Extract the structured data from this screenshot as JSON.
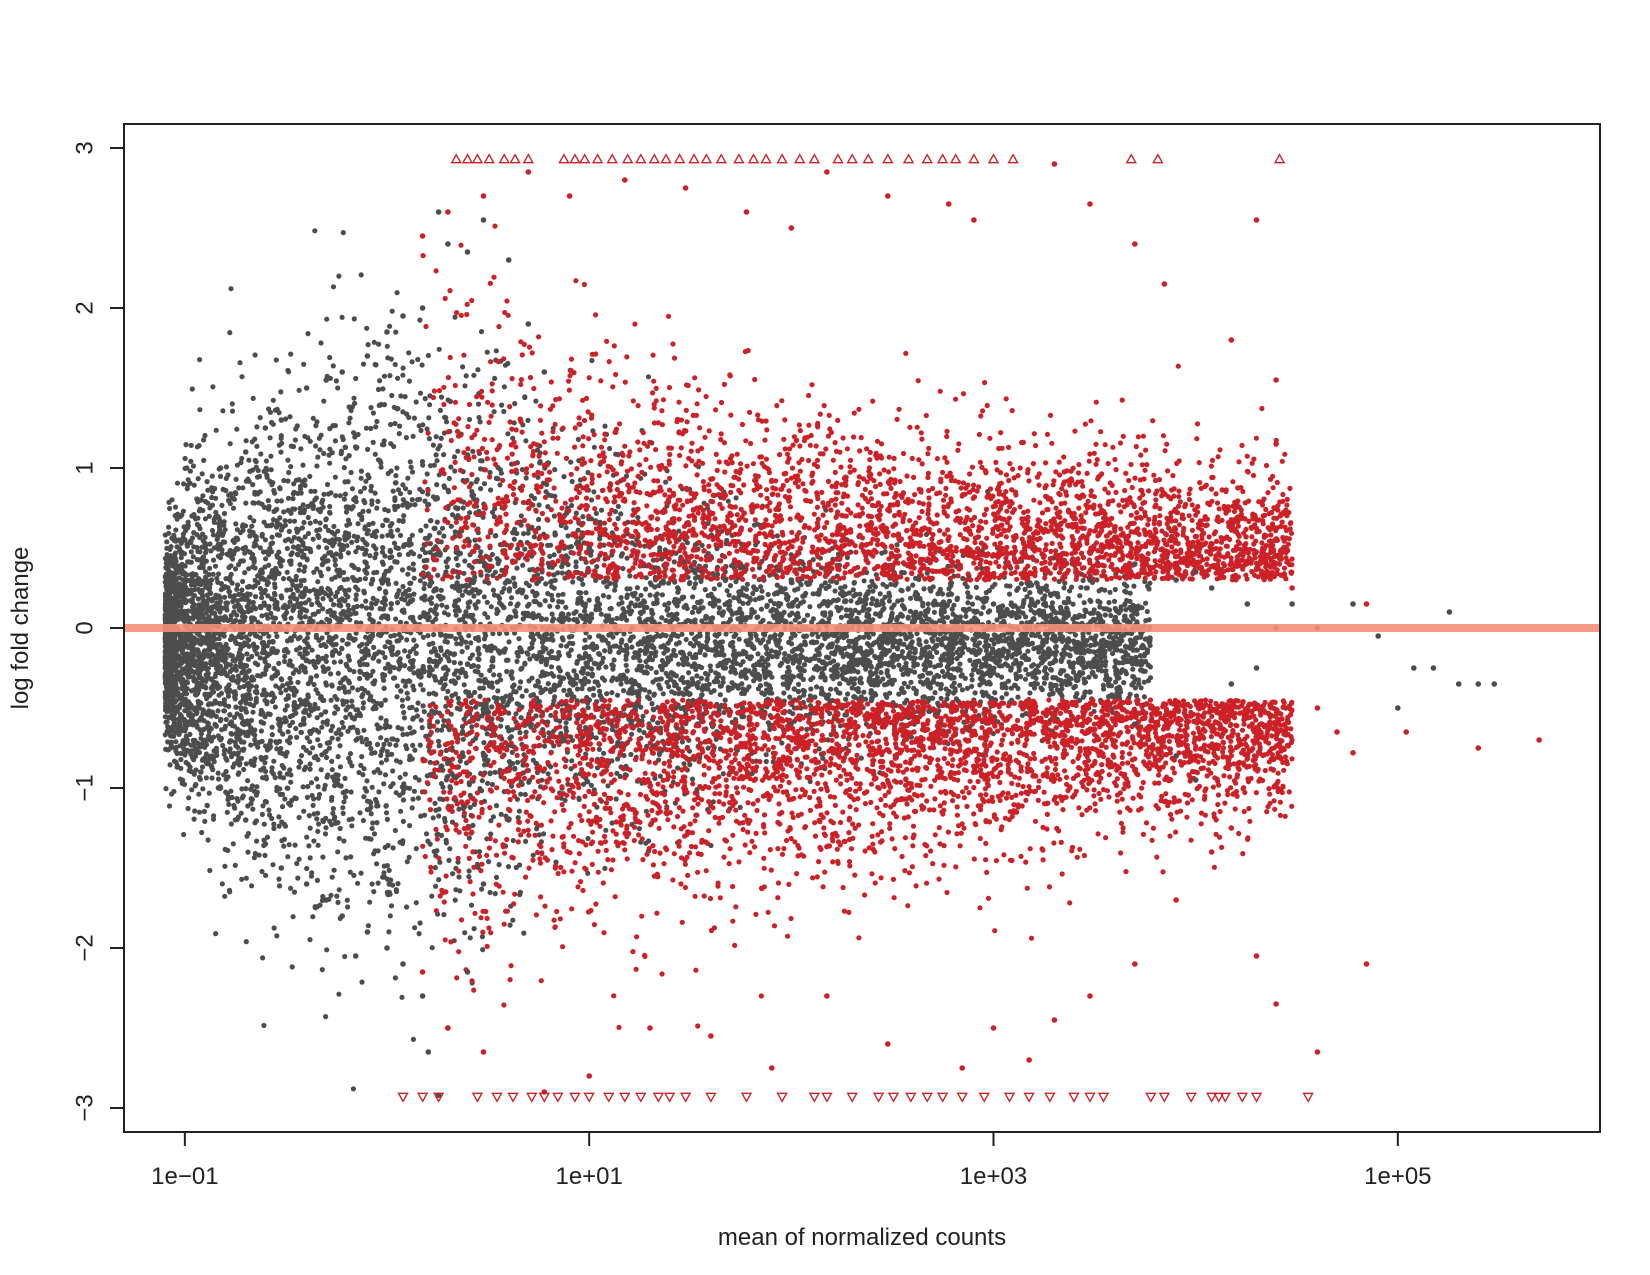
{
  "chart_data": {
    "type": "scatter",
    "xlabel": "mean of normalized counts",
    "ylabel": "log fold change",
    "x_scale": "log10",
    "xlim": [
      0.05,
      1000000
    ],
    "ylim": [
      -3.15,
      3.15
    ],
    "x_ticks": [
      {
        "value": 0.1,
        "label": "1e−01"
      },
      {
        "value": 10,
        "label": "1e+01"
      },
      {
        "value": 1000,
        "label": "1e+03"
      },
      {
        "value": 100000,
        "label": "1e+05"
      }
    ],
    "y_ticks": [
      {
        "value": -3,
        "label": "−3"
      },
      {
        "value": -2,
        "label": "−2"
      },
      {
        "value": -1,
        "label": "−1"
      },
      {
        "value": 0,
        "label": "0"
      },
      {
        "value": 1,
        "label": "1"
      },
      {
        "value": 2,
        "label": "2"
      },
      {
        "value": 3,
        "label": "3"
      }
    ],
    "reference_line": {
      "y": 0,
      "color": "#f4907a"
    },
    "colors": {
      "not_significant": "#4d4d4d",
      "significant": "#cc2127"
    },
    "grid": false,
    "legend": "none",
    "series": [
      {
        "group": "not_significant",
        "color": "#4d4d4d",
        "marker": "circle",
        "points": [
          [
            0.1,
            0.55
          ],
          [
            0.1,
            -0.7
          ],
          [
            0.12,
            0.8
          ],
          [
            0.12,
            -0.9
          ],
          [
            0.15,
            1.0
          ],
          [
            0.15,
            -1.0
          ],
          [
            0.2,
            1.1
          ],
          [
            0.2,
            -1.2
          ],
          [
            0.25,
            1.25
          ],
          [
            0.25,
            -1.35
          ],
          [
            0.3,
            1.3
          ],
          [
            0.3,
            -1.5
          ],
          [
            0.4,
            1.5
          ],
          [
            0.4,
            -1.6
          ],
          [
            0.5,
            1.55
          ],
          [
            0.5,
            -1.7
          ],
          [
            0.6,
            1.6
          ],
          [
            0.6,
            -1.8
          ],
          [
            0.8,
            1.7
          ],
          [
            0.8,
            -1.9
          ],
          [
            1.0,
            1.85
          ],
          [
            1.0,
            -2.0
          ],
          [
            1.2,
            1.95
          ],
          [
            1.2,
            -2.1
          ],
          [
            1.5,
            2.0
          ],
          [
            1.5,
            -2.3
          ],
          [
            0.7,
            -2.05
          ],
          [
            1.6,
            -2.65
          ],
          [
            1.8,
            -2.92
          ],
          [
            1.8,
            2.6
          ],
          [
            2.0,
            2.4
          ],
          [
            2.0,
            -2.5
          ],
          [
            2.5,
            2.35
          ],
          [
            2.5,
            -2.15
          ],
          [
            3.0,
            2.55
          ],
          [
            3.0,
            -1.6
          ],
          [
            4.0,
            2.3
          ],
          [
            4.0,
            -1.2
          ],
          [
            5.0,
            1.9
          ],
          [
            6.0,
            1.6
          ],
          [
            10.0,
            0.5
          ],
          [
            10.0,
            -0.45
          ],
          [
            100.0,
            0.3
          ],
          [
            100.0,
            -0.3
          ],
          [
            1000.0,
            0.15
          ],
          [
            1000.0,
            -0.15
          ],
          [
            3000.0,
            0.3
          ],
          [
            3000.0,
            -0.4
          ],
          [
            5000.0,
            0.4
          ],
          [
            5000.0,
            -0.6
          ],
          [
            8000.0,
            0.3
          ],
          [
            8000.0,
            -0.8
          ],
          [
            10000.0,
            0.35
          ],
          [
            10000.0,
            -0.95
          ],
          [
            12000.0,
            0.25
          ],
          [
            15000.0,
            -0.35
          ],
          [
            18000.0,
            0.15
          ],
          [
            20000.0,
            -0.25
          ],
          [
            25000.0,
            0.0
          ],
          [
            30000.0,
            0.15
          ],
          [
            40000.0,
            0.0
          ],
          [
            60000.0,
            0.15
          ],
          [
            80000.0,
            -0.05
          ],
          [
            100000.0,
            -0.5
          ],
          [
            120000.0,
            -0.25
          ],
          [
            150000.0,
            -0.25
          ],
          [
            180000.0,
            0.1
          ],
          [
            200000.0,
            -0.35
          ],
          [
            250000.0,
            -0.35
          ],
          [
            300000.0,
            -0.35
          ]
        ]
      },
      {
        "group": "significant",
        "color": "#cc2127",
        "marker": "circle",
        "points": [
          [
            1.5,
            2.45
          ],
          [
            2.0,
            2.6
          ],
          [
            3.0,
            2.7
          ],
          [
            5.0,
            2.85
          ],
          [
            8.0,
            2.7
          ],
          [
            15.0,
            2.8
          ],
          [
            30.0,
            2.75
          ],
          [
            60.0,
            2.6
          ],
          [
            100.0,
            2.5
          ],
          [
            150.0,
            2.85
          ],
          [
            300.0,
            2.7
          ],
          [
            600.0,
            2.65
          ],
          [
            800.0,
            2.55
          ],
          [
            2000.0,
            2.9
          ],
          [
            3000.0,
            2.65
          ],
          [
            5000.0,
            2.4
          ],
          [
            7000.0,
            2.15
          ],
          [
            15000.0,
            1.8
          ],
          [
            20000.0,
            2.55
          ],
          [
            25000.0,
            1.55
          ],
          [
            25000.0,
            1.15
          ],
          [
            30000.0,
            0.25
          ],
          [
            40000.0,
            -0.5
          ],
          [
            50000.0,
            -0.65
          ],
          [
            60000.0,
            -0.78
          ],
          [
            70000.0,
            0.15
          ],
          [
            110000.0,
            -0.65
          ],
          [
            70000.0,
            -2.1
          ],
          [
            250000.0,
            -0.75
          ],
          [
            500000.0,
            -0.7
          ],
          [
            40000.0,
            -2.65
          ],
          [
            25000.0,
            -2.35
          ],
          [
            20000.0,
            -2.05
          ],
          [
            15000.0,
            -1.25
          ],
          [
            10000.0,
            -0.8
          ],
          [
            12000.0,
            -1.4
          ],
          [
            8000.0,
            -1.7
          ],
          [
            5000.0,
            -2.1
          ],
          [
            3000.0,
            -2.3
          ],
          [
            2000.0,
            -2.45
          ],
          [
            1500.0,
            -2.7
          ],
          [
            1000.0,
            -2.5
          ],
          [
            700.0,
            -2.75
          ],
          [
            300.0,
            -2.6
          ],
          [
            150.0,
            -2.3
          ],
          [
            80.0,
            -2.75
          ],
          [
            40.0,
            -2.55
          ],
          [
            20.0,
            -2.5
          ],
          [
            10.0,
            -2.8
          ],
          [
            6.0,
            -2.9
          ],
          [
            3.0,
            -2.65
          ],
          [
            2.0,
            -2.5
          ],
          [
            1.5,
            -2.15
          ]
        ]
      },
      {
        "group": "significant_clipped_up",
        "color": "#cc2127",
        "marker": "triangle-up",
        "points": [
          [
            2.2,
            2.93
          ],
          [
            2.5,
            2.93
          ],
          [
            2.8,
            2.93
          ],
          [
            3.2,
            2.93
          ],
          [
            3.8,
            2.93
          ],
          [
            4.3,
            2.93
          ],
          [
            5.0,
            2.93
          ],
          [
            7.5,
            2.93
          ],
          [
            8.5,
            2.93
          ],
          [
            9.5,
            2.93
          ],
          [
            11.0,
            2.93
          ],
          [
            13.0,
            2.93
          ],
          [
            15.5,
            2.93
          ],
          [
            18.0,
            2.93
          ],
          [
            21.0,
            2.93
          ],
          [
            24.0,
            2.93
          ],
          [
            28.0,
            2.93
          ],
          [
            33.0,
            2.93
          ],
          [
            38.0,
            2.93
          ],
          [
            45.0,
            2.93
          ],
          [
            55.0,
            2.93
          ],
          [
            65.0,
            2.93
          ],
          [
            75.0,
            2.93
          ],
          [
            90.0,
            2.93
          ],
          [
            110.0,
            2.93
          ],
          [
            130.0,
            2.93
          ],
          [
            170.0,
            2.93
          ],
          [
            200.0,
            2.93
          ],
          [
            240.0,
            2.93
          ],
          [
            300.0,
            2.93
          ],
          [
            380.0,
            2.93
          ],
          [
            470.0,
            2.93
          ],
          [
            560.0,
            2.93
          ],
          [
            650.0,
            2.93
          ],
          [
            800.0,
            2.93
          ],
          [
            1000.0,
            2.93
          ],
          [
            1250.0,
            2.93
          ],
          [
            4800.0,
            2.93
          ],
          [
            6500.0,
            2.93
          ],
          [
            26000.0,
            2.93
          ]
        ]
      },
      {
        "group": "significant_clipped_down",
        "color": "#cc2127",
        "marker": "triangle-down",
        "points": [
          [
            1.2,
            -2.93
          ],
          [
            1.5,
            -2.93
          ],
          [
            1.8,
            -2.93
          ],
          [
            2.8,
            -2.93
          ],
          [
            3.5,
            -2.93
          ],
          [
            4.2,
            -2.93
          ],
          [
            5.2,
            -2.93
          ],
          [
            6.0,
            -2.93
          ],
          [
            7.0,
            -2.93
          ],
          [
            8.5,
            -2.93
          ],
          [
            10.0,
            -2.93
          ],
          [
            12.5,
            -2.93
          ],
          [
            15.0,
            -2.93
          ],
          [
            18.0,
            -2.93
          ],
          [
            22.0,
            -2.93
          ],
          [
            25.0,
            -2.93
          ],
          [
            30.0,
            -2.93
          ],
          [
            40.0,
            -2.93
          ],
          [
            60.0,
            -2.93
          ],
          [
            90.0,
            -2.93
          ],
          [
            130.0,
            -2.93
          ],
          [
            150.0,
            -2.93
          ],
          [
            200.0,
            -2.93
          ],
          [
            270.0,
            -2.93
          ],
          [
            320.0,
            -2.93
          ],
          [
            390.0,
            -2.93
          ],
          [
            470.0,
            -2.93
          ],
          [
            560.0,
            -2.93
          ],
          [
            700.0,
            -2.93
          ],
          [
            900.0,
            -2.93
          ],
          [
            1200.0,
            -2.93
          ],
          [
            1500.0,
            -2.93
          ],
          [
            1900.0,
            -2.93
          ],
          [
            2500.0,
            -2.93
          ],
          [
            3000.0,
            -2.93
          ],
          [
            3500.0,
            -2.93
          ],
          [
            6000.0,
            -2.93
          ],
          [
            7000.0,
            -2.93
          ],
          [
            9500.0,
            -2.93
          ],
          [
            12000.0,
            -2.93
          ],
          [
            13000.0,
            -2.93
          ],
          [
            14000.0,
            -2.93
          ],
          [
            17000.0,
            -2.93
          ],
          [
            20000.0,
            -2.93
          ],
          [
            36000.0,
            -2.93
          ]
        ]
      }
    ],
    "density_regions": [
      {
        "group": "not_significant",
        "color": "#4d4d4d",
        "description_free": true,
        "x_range": [
          0.08,
          6000
        ],
        "center_y": -0.1,
        "spread_profile": [
          [
            0.08,
            0.25
          ],
          [
            0.1,
            0.5
          ],
          [
            0.3,
            0.75
          ],
          [
            1.0,
            0.85
          ],
          [
            3.0,
            0.75
          ],
          [
            10.0,
            0.5
          ],
          [
            100.0,
            0.3
          ],
          [
            1000.0,
            0.22
          ],
          [
            6000.0,
            0.18
          ]
        ],
        "count": 9000
      },
      {
        "group": "significant",
        "color": "#cc2127",
        "x_range": [
          1.5,
          30000
        ],
        "center_y": 0.5,
        "spread_profile": [
          [
            1.5,
            0.9
          ],
          [
            10.0,
            0.7
          ],
          [
            100.0,
            0.55
          ],
          [
            1000.0,
            0.45
          ],
          [
            30000.0,
            0.35
          ]
        ],
        "sign": 1,
        "count": 3200
      },
      {
        "group": "significant",
        "color": "#cc2127",
        "x_range": [
          1.5,
          30000
        ],
        "center_y": -0.7,
        "spread_profile": [
          [
            1.5,
            0.9
          ],
          [
            10.0,
            0.75
          ],
          [
            100.0,
            0.6
          ],
          [
            1000.0,
            0.45
          ],
          [
            30000.0,
            0.35
          ]
        ],
        "sign": -1,
        "count": 3600
      }
    ]
  }
}
